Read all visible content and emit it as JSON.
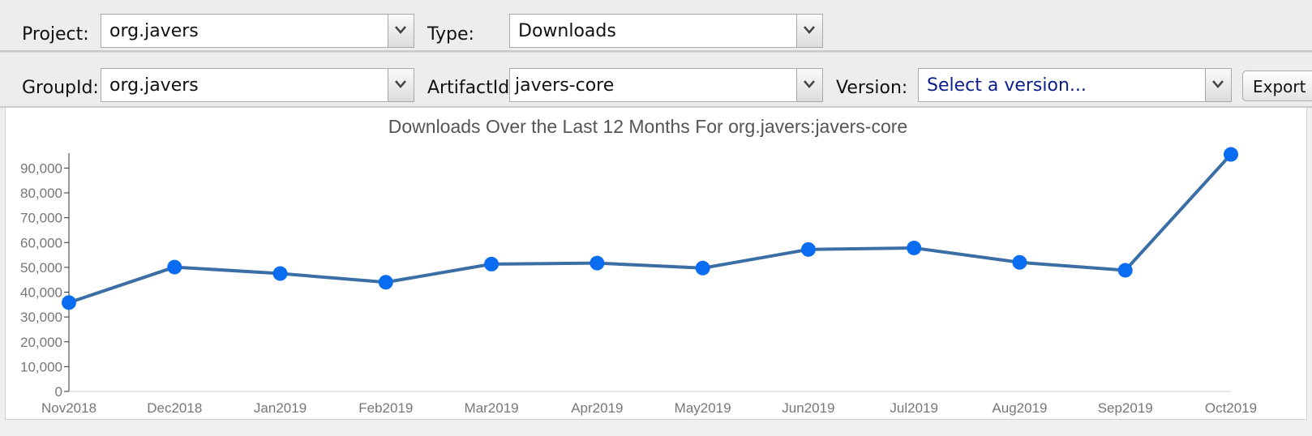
{
  "toolbar": {
    "project_label": "Project:",
    "project_value": "org.javers",
    "type_label": "Type:",
    "type_value": "Downloads",
    "groupid_label": "GroupId:",
    "groupid_value": "org.javers",
    "artifactid_label": "ArtifactId:",
    "artifactid_value": "javers-core",
    "version_label": "Version:",
    "version_value": "Select a version...",
    "export_label": "Export",
    "version_color": "#0b1f8a"
  },
  "chart_data": {
    "type": "line",
    "title": "Downloads Over the Last 12 Months For org.javers:javers-core",
    "categories": [
      "Nov2018",
      "Dec2018",
      "Jan2019",
      "Feb2019",
      "Mar2019",
      "Apr2019",
      "May2019",
      "Jun2019",
      "Jul2019",
      "Aug2019",
      "Sep2019",
      "Oct2019"
    ],
    "series": [
      {
        "values": [
          35800,
          50100,
          47500,
          44000,
          51300,
          51700,
          49700,
          57200,
          57800,
          52000,
          48800,
          95500
        ]
      }
    ],
    "yticks": [
      "0",
      "10,000",
      "20,000",
      "30,000",
      "40,000",
      "50,000",
      "60,000",
      "70,000",
      "80,000",
      "90,000"
    ],
    "ytick_values": [
      0,
      10000,
      20000,
      30000,
      40000,
      50000,
      60000,
      70000,
      80000,
      90000
    ],
    "ylim": [
      0,
      96000
    ],
    "grid": false,
    "line_color": "#3a6ea5",
    "marker_color": "#0a6cf0"
  }
}
